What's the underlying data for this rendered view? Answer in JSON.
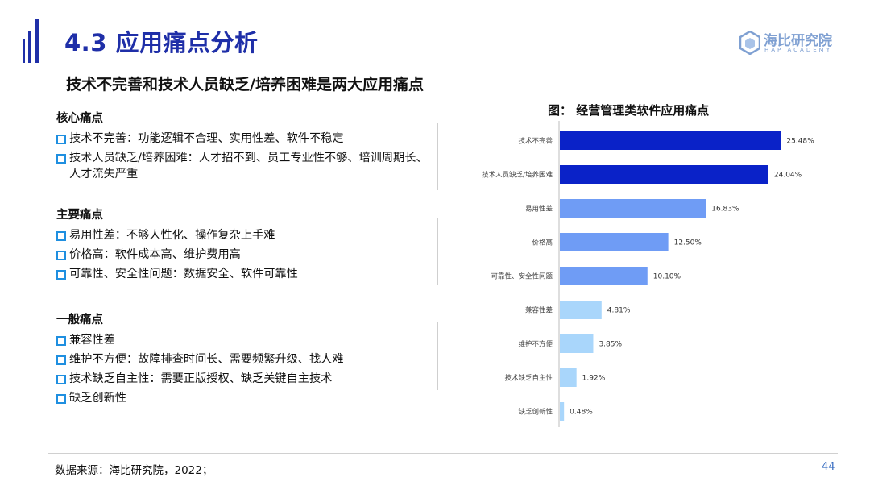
{
  "header": {
    "title": "4.3 应用痛点分析",
    "subtitle": "技术不完善和技术人员缺乏/培养困难是两大应用痛点",
    "logo_cn": "海比研究院",
    "logo_en": "HAP ACADEMY",
    "brand_color": "#1f2fa8"
  },
  "sections": [
    {
      "heading": "核心痛点",
      "items": [
        "技术不完善：功能逻辑不合理、实用性差、软件不稳定",
        "技术人员缺乏/培养困难：人才招不到、员工专业性不够、培训周期长、人才流失严重"
      ]
    },
    {
      "heading": "主要痛点",
      "items": [
        "易用性差：不够人性化、操作复杂上手难",
        "价格高：软件成本高、维护费用高",
        "可靠性、安全性问题：数据安全、软件可靠性"
      ]
    },
    {
      "heading": "一般痛点",
      "items": [
        "兼容性差",
        "维护不方便：故障排查时间长、需要频繁升级、找人难",
        "技术缺乏自主性：需要正版授权、缺乏关键自主技术",
        "缺乏创新性"
      ]
    }
  ],
  "chart_data": {
    "type": "bar",
    "orientation": "horizontal",
    "title": "图：  经营管理类软件应用痛点",
    "categories": [
      "技术不完善",
      "技术人员缺乏/培养困难",
      "易用性差",
      "价格高",
      "可靠性、安全性问题",
      "兼容性差",
      "维护不方便",
      "技术缺乏自主性",
      "缺乏创新性"
    ],
    "values": [
      25.48,
      24.04,
      16.83,
      12.5,
      10.1,
      4.81,
      3.85,
      1.92,
      0.48
    ],
    "value_labels": [
      "25.48%",
      "24.04%",
      "16.83%",
      "12.50%",
      "10.10%",
      "4.81%",
      "3.85%",
      "1.92%",
      "0.48%"
    ],
    "colors": [
      "#0a22c8",
      "#0a22c8",
      "#6f9cf5",
      "#6f9cf5",
      "#6f9cf5",
      "#a9d6fb",
      "#a9d6fb",
      "#a9d6fb",
      "#a9d6fb"
    ],
    "xlim": [
      0,
      26
    ],
    "grid": false,
    "legend": "none"
  },
  "footer": {
    "source": "数据来源：海比研究院，2022；",
    "page_number": "44"
  }
}
